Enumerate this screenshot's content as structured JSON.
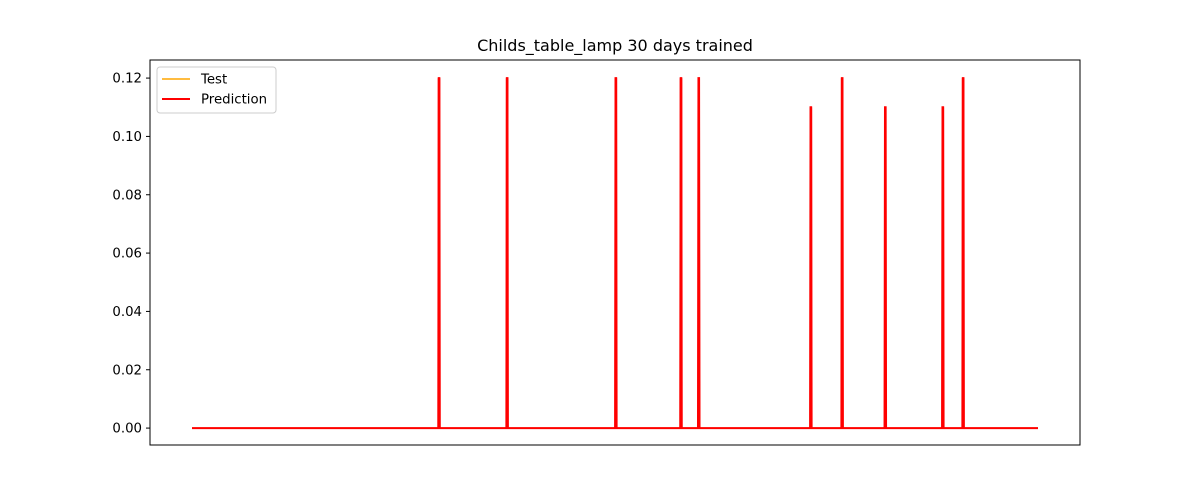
{
  "chart_data": {
    "type": "line",
    "title": "Childs_table_lamp 30 days trained",
    "xlabel": "",
    "ylabel": "",
    "x_range": [
      0,
      1000
    ],
    "ylim": [
      -0.0058,
      0.1262
    ],
    "yticks": [
      0.0,
      0.02,
      0.04,
      0.06,
      0.08,
      0.1,
      0.12
    ],
    "ytick_labels": [
      "0.00",
      "0.02",
      "0.04",
      "0.06",
      "0.08",
      "0.10",
      "0.12"
    ],
    "xticks_visible": false,
    "grid": false,
    "legend_position": "top-left",
    "colors": {
      "Test": "#ffa500",
      "Prediction": "#ff0000"
    },
    "series": [
      {
        "name": "Test",
        "x": [
          0,
          292,
          292.5,
          293,
          293.5,
          1000
        ],
        "y": [
          0,
          0,
          0,
          0,
          0,
          0
        ]
      },
      {
        "name": "Prediction",
        "spikes": [
          {
            "x": 292,
            "y": 0.12
          },
          {
            "x": 372.5,
            "y": 0.12
          },
          {
            "x": 501,
            "y": 0.12
          },
          {
            "x": 578,
            "y": 0.12
          },
          {
            "x": 599,
            "y": 0.12
          },
          {
            "x": 731.5,
            "y": 0.11
          },
          {
            "x": 768.5,
            "y": 0.12
          },
          {
            "x": 819.5,
            "y": 0.11
          },
          {
            "x": 887.5,
            "y": 0.11
          },
          {
            "x": 911.5,
            "y": 0.12
          }
        ],
        "baseline": 0
      }
    ],
    "legend": [
      {
        "label": "Test",
        "color": "#ffa500"
      },
      {
        "label": "Prediction",
        "color": "#ff0000"
      }
    ]
  }
}
